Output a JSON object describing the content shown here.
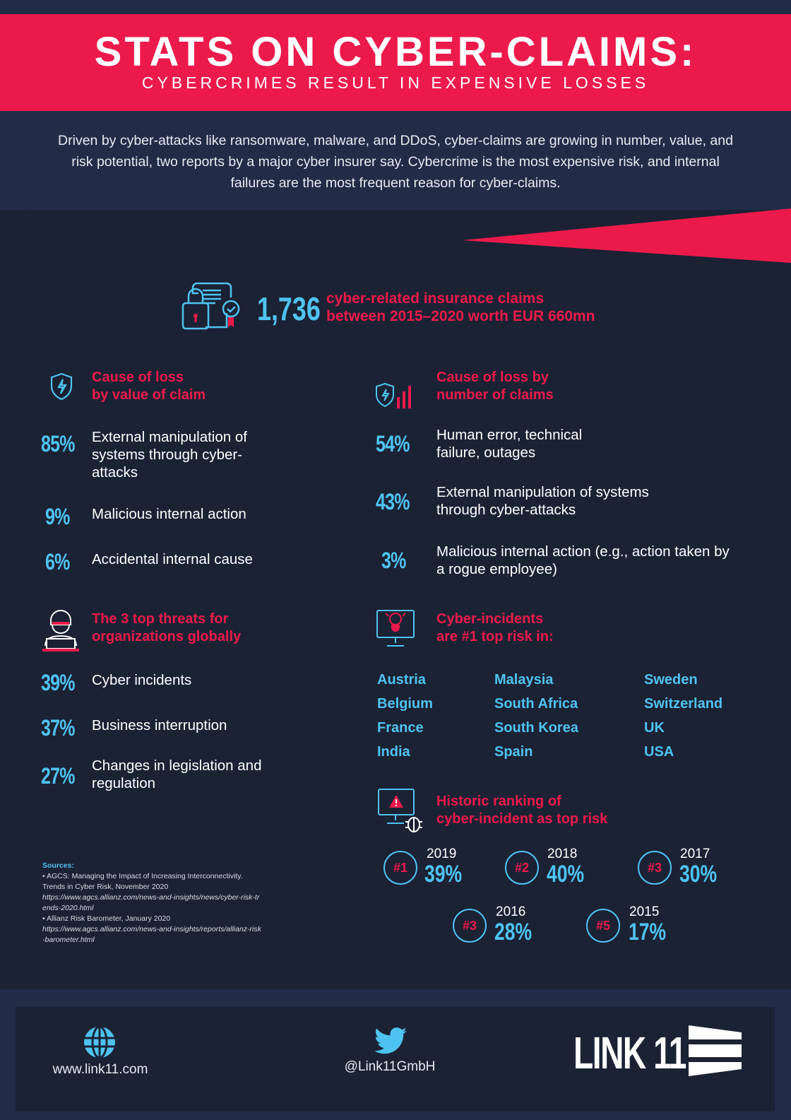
{
  "colors": {
    "accent_red": "#ec1a4b",
    "accent_blue": "#4fc3f0",
    "background": "#1b2234",
    "panel": "#232c47"
  },
  "header": {
    "title": "STATS ON CYBER-CLAIMS:",
    "subtitle": "CYBERCRIMES RESULT IN EXPENSIVE LOSSES"
  },
  "intro": "Driven by cyber-attacks like ransomware, malware, and DDoS, cyber-claims are growing in number, value, and risk potential, two reports by a major cyber insurer say. Cybercrime is the most expensive risk, and internal failures are the most frequent reason for cyber-claims.",
  "highlight": {
    "icon": "document-lock-certificate-icon",
    "number": "1,736",
    "line1": "cyber-related insurance claims",
    "line2": "between 2015–2020 worth EUR 660mn"
  },
  "value_section": {
    "icon": "shield-lightning-icon",
    "heading1": "Cause of loss",
    "heading2": "by value of claim",
    "items": [
      {
        "pct": "85%",
        "text": "External manipulation of systems through cyber-attacks"
      },
      {
        "pct": "9%",
        "text": "Malicious internal action"
      },
      {
        "pct": "6%",
        "text": "Accidental internal cause"
      }
    ]
  },
  "number_section": {
    "icon": "shield-bars-icon",
    "heading1": "Cause of loss by",
    "heading2": "number of claims",
    "items": [
      {
        "pct": "54%",
        "text": "Human error, technical failure, outages"
      },
      {
        "pct": "43%",
        "text": "External manipulation of systems through cyber-attacks"
      },
      {
        "pct": "3%",
        "text": "Malicious internal action (e.g., action taken by a rogue employee)"
      }
    ]
  },
  "threats_section": {
    "icon": "hacker-laptop-icon",
    "heading1": "The 3 top threats for",
    "heading2": "organizations globally",
    "items": [
      {
        "pct": "39%",
        "text": "Cyber incidents"
      },
      {
        "pct": "37%",
        "text": "Business interruption"
      },
      {
        "pct": "27%",
        "text": "Changes in legislation and regulation"
      }
    ]
  },
  "countries_section": {
    "icon": "monitor-bug-icon",
    "heading1": "Cyber-incidents",
    "heading2": "are #1 top risk in:",
    "countries": [
      "Austria",
      "Belgium",
      "France",
      "India",
      "Malaysia",
      "South Africa",
      "South Korea",
      "Spain",
      "Sweden",
      "Switzerland",
      "UK",
      "USA"
    ]
  },
  "history_section": {
    "icon": "monitor-warning-bug-icon",
    "heading1": "Historic ranking of",
    "heading2": "cyber-incident as top risk",
    "items": [
      {
        "rank": "#1",
        "year": "2019",
        "pct": "39%"
      },
      {
        "rank": "#2",
        "year": "2018",
        "pct": "40%"
      },
      {
        "rank": "#3",
        "year": "2017",
        "pct": "30%"
      },
      {
        "rank": "#3",
        "year": "2016",
        "pct": "28%"
      },
      {
        "rank": "#5",
        "year": "2015",
        "pct": "17%"
      }
    ]
  },
  "sources": {
    "label": "Sources:",
    "items": [
      {
        "title": "• AGCS: Managing the Impact of Increasing Interconnectivity. Trends in Cyber Risk, November 2020",
        "url": "https://www.agcs.allianz.com/news-and-insights/news/cyber-risk-trends-2020.html"
      },
      {
        "title": "• Allianz Risk Barometer, January 2020",
        "url": "https://www.agcs.allianz.com/news-and-insights/reports/allianz-risk-barometer.html"
      }
    ]
  },
  "footer": {
    "website": "www.link11.com",
    "twitter": "@Link11GmbH",
    "logo": "LINK 11"
  }
}
